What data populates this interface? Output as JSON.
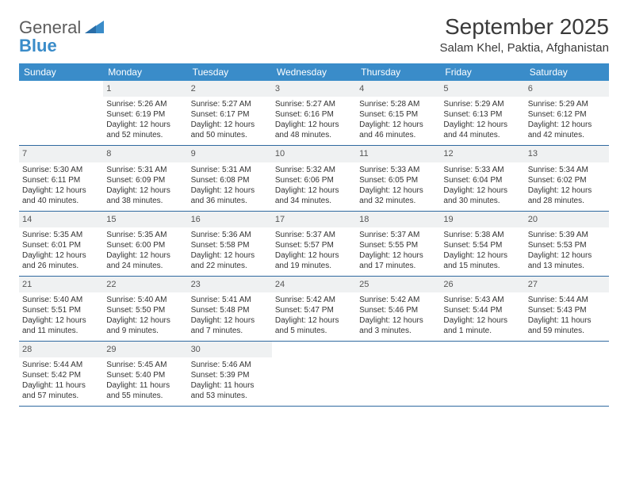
{
  "logo": {
    "word1": "General",
    "word2": "Blue"
  },
  "title": "September 2025",
  "location": "Salam Khel, Paktia, Afghanistan",
  "colors": {
    "header_bg": "#3a8cc9",
    "header_text": "#ffffff",
    "daynum_bg": "#eff1f2",
    "week_border": "#2f6aa0",
    "body_text": "#333333"
  },
  "days_of_week": [
    "Sunday",
    "Monday",
    "Tuesday",
    "Wednesday",
    "Thursday",
    "Friday",
    "Saturday"
  ],
  "weeks": [
    [
      null,
      {
        "n": "1",
        "sr": "Sunrise: 5:26 AM",
        "ss": "Sunset: 6:19 PM",
        "dl": "Daylight: 12 hours and 52 minutes."
      },
      {
        "n": "2",
        "sr": "Sunrise: 5:27 AM",
        "ss": "Sunset: 6:17 PM",
        "dl": "Daylight: 12 hours and 50 minutes."
      },
      {
        "n": "3",
        "sr": "Sunrise: 5:27 AM",
        "ss": "Sunset: 6:16 PM",
        "dl": "Daylight: 12 hours and 48 minutes."
      },
      {
        "n": "4",
        "sr": "Sunrise: 5:28 AM",
        "ss": "Sunset: 6:15 PM",
        "dl": "Daylight: 12 hours and 46 minutes."
      },
      {
        "n": "5",
        "sr": "Sunrise: 5:29 AM",
        "ss": "Sunset: 6:13 PM",
        "dl": "Daylight: 12 hours and 44 minutes."
      },
      {
        "n": "6",
        "sr": "Sunrise: 5:29 AM",
        "ss": "Sunset: 6:12 PM",
        "dl": "Daylight: 12 hours and 42 minutes."
      }
    ],
    [
      {
        "n": "7",
        "sr": "Sunrise: 5:30 AM",
        "ss": "Sunset: 6:11 PM",
        "dl": "Daylight: 12 hours and 40 minutes."
      },
      {
        "n": "8",
        "sr": "Sunrise: 5:31 AM",
        "ss": "Sunset: 6:09 PM",
        "dl": "Daylight: 12 hours and 38 minutes."
      },
      {
        "n": "9",
        "sr": "Sunrise: 5:31 AM",
        "ss": "Sunset: 6:08 PM",
        "dl": "Daylight: 12 hours and 36 minutes."
      },
      {
        "n": "10",
        "sr": "Sunrise: 5:32 AM",
        "ss": "Sunset: 6:06 PM",
        "dl": "Daylight: 12 hours and 34 minutes."
      },
      {
        "n": "11",
        "sr": "Sunrise: 5:33 AM",
        "ss": "Sunset: 6:05 PM",
        "dl": "Daylight: 12 hours and 32 minutes."
      },
      {
        "n": "12",
        "sr": "Sunrise: 5:33 AM",
        "ss": "Sunset: 6:04 PM",
        "dl": "Daylight: 12 hours and 30 minutes."
      },
      {
        "n": "13",
        "sr": "Sunrise: 5:34 AM",
        "ss": "Sunset: 6:02 PM",
        "dl": "Daylight: 12 hours and 28 minutes."
      }
    ],
    [
      {
        "n": "14",
        "sr": "Sunrise: 5:35 AM",
        "ss": "Sunset: 6:01 PM",
        "dl": "Daylight: 12 hours and 26 minutes."
      },
      {
        "n": "15",
        "sr": "Sunrise: 5:35 AM",
        "ss": "Sunset: 6:00 PM",
        "dl": "Daylight: 12 hours and 24 minutes."
      },
      {
        "n": "16",
        "sr": "Sunrise: 5:36 AM",
        "ss": "Sunset: 5:58 PM",
        "dl": "Daylight: 12 hours and 22 minutes."
      },
      {
        "n": "17",
        "sr": "Sunrise: 5:37 AM",
        "ss": "Sunset: 5:57 PM",
        "dl": "Daylight: 12 hours and 19 minutes."
      },
      {
        "n": "18",
        "sr": "Sunrise: 5:37 AM",
        "ss": "Sunset: 5:55 PM",
        "dl": "Daylight: 12 hours and 17 minutes."
      },
      {
        "n": "19",
        "sr": "Sunrise: 5:38 AM",
        "ss": "Sunset: 5:54 PM",
        "dl": "Daylight: 12 hours and 15 minutes."
      },
      {
        "n": "20",
        "sr": "Sunrise: 5:39 AM",
        "ss": "Sunset: 5:53 PM",
        "dl": "Daylight: 12 hours and 13 minutes."
      }
    ],
    [
      {
        "n": "21",
        "sr": "Sunrise: 5:40 AM",
        "ss": "Sunset: 5:51 PM",
        "dl": "Daylight: 12 hours and 11 minutes."
      },
      {
        "n": "22",
        "sr": "Sunrise: 5:40 AM",
        "ss": "Sunset: 5:50 PM",
        "dl": "Daylight: 12 hours and 9 minutes."
      },
      {
        "n": "23",
        "sr": "Sunrise: 5:41 AM",
        "ss": "Sunset: 5:48 PM",
        "dl": "Daylight: 12 hours and 7 minutes."
      },
      {
        "n": "24",
        "sr": "Sunrise: 5:42 AM",
        "ss": "Sunset: 5:47 PM",
        "dl": "Daylight: 12 hours and 5 minutes."
      },
      {
        "n": "25",
        "sr": "Sunrise: 5:42 AM",
        "ss": "Sunset: 5:46 PM",
        "dl": "Daylight: 12 hours and 3 minutes."
      },
      {
        "n": "26",
        "sr": "Sunrise: 5:43 AM",
        "ss": "Sunset: 5:44 PM",
        "dl": "Daylight: 12 hours and 1 minute."
      },
      {
        "n": "27",
        "sr": "Sunrise: 5:44 AM",
        "ss": "Sunset: 5:43 PM",
        "dl": "Daylight: 11 hours and 59 minutes."
      }
    ],
    [
      {
        "n": "28",
        "sr": "Sunrise: 5:44 AM",
        "ss": "Sunset: 5:42 PM",
        "dl": "Daylight: 11 hours and 57 minutes."
      },
      {
        "n": "29",
        "sr": "Sunrise: 5:45 AM",
        "ss": "Sunset: 5:40 PM",
        "dl": "Daylight: 11 hours and 55 minutes."
      },
      {
        "n": "30",
        "sr": "Sunrise: 5:46 AM",
        "ss": "Sunset: 5:39 PM",
        "dl": "Daylight: 11 hours and 53 minutes."
      },
      null,
      null,
      null,
      null
    ]
  ]
}
